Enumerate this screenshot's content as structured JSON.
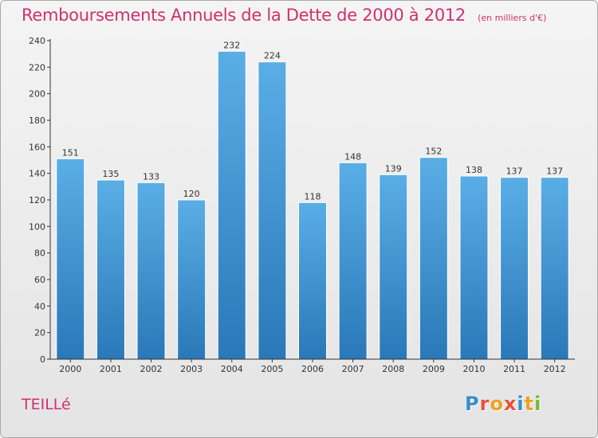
{
  "chart_data": {
    "type": "bar",
    "title": "Remboursements Annuels de la Dette de 2000 à 2012",
    "subtitle": "(en milliers d'€)",
    "categories": [
      "2000",
      "2001",
      "2002",
      "2003",
      "2004",
      "2005",
      "2006",
      "2007",
      "2008",
      "2009",
      "2010",
      "2011",
      "2012"
    ],
    "values": [
      151,
      135,
      133,
      120,
      232,
      224,
      118,
      148,
      139,
      152,
      138,
      137,
      137
    ],
    "xlabel": "",
    "ylabel": "",
    "ylim": [
      0,
      240
    ],
    "yticks": [
      0,
      20,
      40,
      60,
      80,
      100,
      120,
      140,
      160,
      180,
      200,
      220,
      240
    ],
    "grid": false,
    "bar_color_top": "#5aaee6",
    "bar_color_bottom": "#2a78b8"
  },
  "footer": {
    "commune": "TEILLé"
  },
  "logo": {
    "text": "Proxiti",
    "letters": [
      {
        "char": "P",
        "color": "#3b8ec8"
      },
      {
        "char": "r",
        "color": "#e8503a"
      },
      {
        "char": "o",
        "color": "#f0a020"
      },
      {
        "char": "x",
        "color": "#e8503a"
      },
      {
        "char": "i",
        "color": "#3b8ec8"
      },
      {
        "char": "t",
        "color": "#f0a020"
      },
      {
        "char": "i",
        "color": "#7ab830"
      }
    ]
  },
  "colors": {
    "title": "#d0306e",
    "axis": "#333333"
  }
}
